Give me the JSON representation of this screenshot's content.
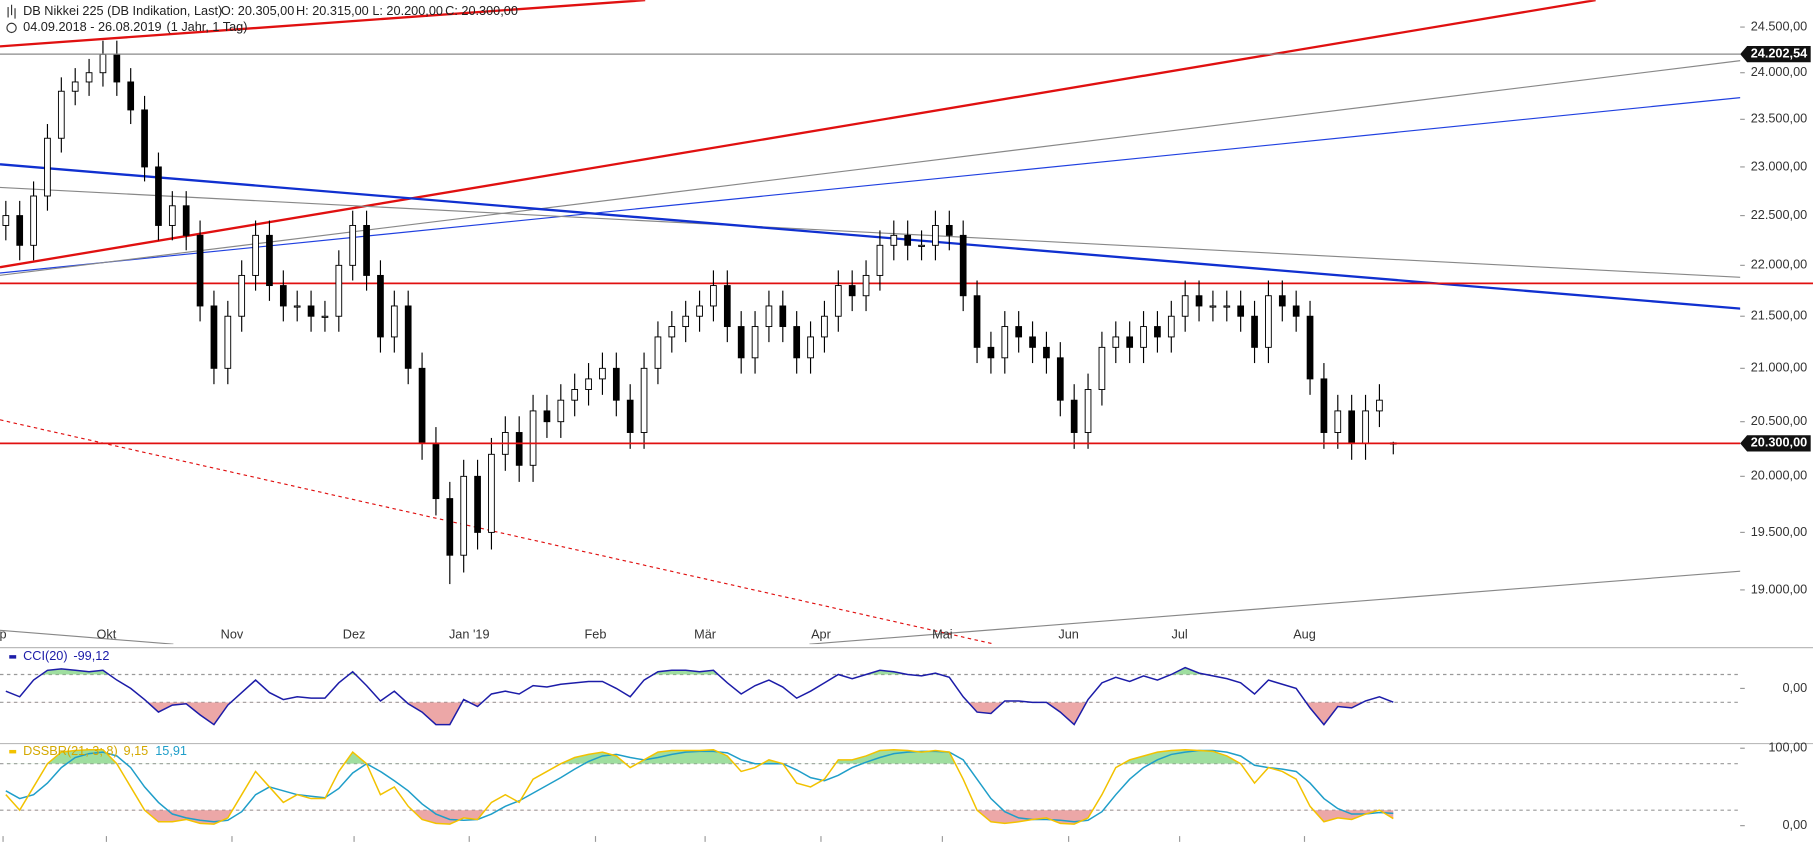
{
  "chart_data": {
    "type": "candlestick",
    "title": "DB Nikkei 225 (DB Indikation, Last)",
    "ohlc_summary": [
      "O: 20.305,00",
      "H: 20.315,00",
      "L: 20.200,00",
      "C: 20.300,00"
    ],
    "period": "04.09.2018 - 26.08.2019",
    "interval": "(1 Jahr, 1 Tag)",
    "open": [
      22400,
      22500,
      22200,
      22700,
      23300,
      23800,
      23900,
      24000,
      24200,
      23900,
      23600,
      23000,
      22400,
      22600,
      22300,
      21600,
      21000,
      21500,
      21900,
      22300,
      21800,
      21600,
      21600,
      21500,
      21500,
      22000,
      22400,
      21900,
      21300,
      21600,
      21000,
      20300,
      19800,
      19300,
      20000,
      19500,
      20200,
      20400,
      20100,
      20600,
      20500,
      20700,
      20800,
      20900,
      21000,
      20700,
      20400,
      21000,
      21300,
      21400,
      21500,
      21600,
      21800,
      21400,
      21100,
      21400,
      21600,
      21400,
      21100,
      21300,
      21500,
      21800,
      21700,
      21900,
      22200,
      22300,
      22200,
      22200,
      22400,
      22300,
      21700,
      21200,
      21100,
      21400,
      21300,
      21200,
      21100,
      20700,
      20400,
      20800,
      21200,
      21300,
      21200,
      21400,
      21300,
      21500,
      21700,
      21600,
      21600,
      21600,
      21500,
      21200,
      21700,
      21600,
      21500,
      20900,
      20400,
      20600,
      20300,
      20600,
      20305
    ],
    "high": [
      22650,
      22650,
      22850,
      23450,
      23950,
      24050,
      24150,
      24350,
      24350,
      24050,
      23750,
      23150,
      22750,
      22750,
      22450,
      21750,
      21650,
      22050,
      22450,
      22450,
      21950,
      21750,
      21750,
      21650,
      22150,
      22550,
      22550,
      22050,
      21750,
      21750,
      21150,
      20450,
      19950,
      20150,
      20150,
      20350,
      20550,
      20550,
      20750,
      20750,
      20850,
      20950,
      21050,
      21150,
      21150,
      20850,
      21150,
      21450,
      21550,
      21650,
      21750,
      21950,
      21950,
      21550,
      21550,
      21750,
      21750,
      21550,
      21450,
      21650,
      21950,
      21950,
      22050,
      22350,
      22450,
      22450,
      22350,
      22550,
      22550,
      22450,
      21850,
      21350,
      21550,
      21550,
      21450,
      21350,
      21250,
      20850,
      20950,
      21350,
      21450,
      21450,
      21550,
      21550,
      21650,
      21850,
      21850,
      21750,
      21750,
      21750,
      21650,
      21850,
      21850,
      21750,
      21650,
      21050,
      20750,
      20750,
      20750,
      20850,
      20315
    ],
    "low": [
      22250,
      22050,
      22050,
      22550,
      23150,
      23650,
      23750,
      23850,
      23750,
      23450,
      22850,
      22250,
      22250,
      22150,
      21450,
      20850,
      20850,
      21350,
      21750,
      21650,
      21450,
      21450,
      21350,
      21350,
      21350,
      21850,
      21750,
      21150,
      21150,
      20850,
      20150,
      19650,
      19050,
      19150,
      19350,
      19350,
      20050,
      19950,
      19950,
      20350,
      20350,
      20550,
      20650,
      20750,
      20550,
      20250,
      20250,
      20850,
      21150,
      21250,
      21350,
      21450,
      21250,
      20950,
      20950,
      21250,
      21250,
      20950,
      20950,
      21150,
      21350,
      21550,
      21550,
      21750,
      22050,
      22050,
      22050,
      22050,
      22150,
      21550,
      21050,
      20950,
      20950,
      21150,
      21050,
      20950,
      20550,
      20250,
      20250,
      20650,
      21050,
      21050,
      21050,
      21150,
      21150,
      21350,
      21450,
      21450,
      21450,
      21350,
      21050,
      21050,
      21450,
      21350,
      20750,
      20250,
      20250,
      20150,
      20150,
      20450,
      20200
    ],
    "close": [
      22500,
      22200,
      22700,
      23300,
      23800,
      23900,
      24000,
      24200,
      23900,
      23600,
      23000,
      22400,
      22600,
      22300,
      21600,
      21000,
      21500,
      21900,
      22300,
      21800,
      21600,
      21600,
      21500,
      21500,
      22000,
      22400,
      21900,
      21300,
      21600,
      21000,
      20300,
      19800,
      19300,
      20000,
      19500,
      20200,
      20400,
      20100,
      20600,
      20500,
      20700,
      20800,
      20900,
      21000,
      20700,
      20400,
      21000,
      21300,
      21400,
      21500,
      21600,
      21800,
      21400,
      21100,
      21400,
      21600,
      21400,
      21100,
      21300,
      21500,
      21800,
      21700,
      21900,
      22200,
      22300,
      22200,
      22200,
      22400,
      22300,
      21700,
      21200,
      21100,
      21400,
      21300,
      21200,
      21100,
      20700,
      20400,
      20800,
      21200,
      21300,
      21200,
      21400,
      21300,
      21500,
      21700,
      21600,
      21600,
      21600,
      21500,
      21200,
      21700,
      21600,
      21500,
      20900,
      20400,
      20600,
      20300,
      20600,
      20700,
      20300
    ],
    "up_color": "#ffffff",
    "down_color": "#000000",
    "log_scale": true,
    "ylim": [
      18540,
      24800
    ],
    "yticks": [
      {
        "value": 24500,
        "label": "24.500,00"
      },
      {
        "value": 24000,
        "label": "24.000,00"
      },
      {
        "value": 23500,
        "label": "23.500,00"
      },
      {
        "value": 23000,
        "label": "23.000,00"
      },
      {
        "value": 22500,
        "label": "22.500,00"
      },
      {
        "value": 22000,
        "label": "22.000,00"
      },
      {
        "value": 21500,
        "label": "21.500,00"
      },
      {
        "value": 21000,
        "label": "21.000,00"
      },
      {
        "value": 20500,
        "label": "20.500,00"
      },
      {
        "value": 20000,
        "label": "20.000,00"
      },
      {
        "value": 19500,
        "label": "19.500,00"
      },
      {
        "value": 19000,
        "label": "19.000,00"
      }
    ],
    "xlim": [
      -0.42,
      125
    ],
    "xticks": [
      {
        "value": -0.2,
        "label": "p"
      },
      {
        "value": 7.25,
        "label": "Okt"
      },
      {
        "value": 16.3,
        "label": "Nov"
      },
      {
        "value": 25.1,
        "label": "Dez"
      },
      {
        "value": 33.4,
        "label": "Jan '19"
      },
      {
        "value": 42.5,
        "label": "Feb"
      },
      {
        "value": 50.4,
        "label": "Mär"
      },
      {
        "value": 58.75,
        "label": "Apr"
      },
      {
        "value": 67.5,
        "label": "Mai"
      },
      {
        "value": 76.6,
        "label": "Jun"
      },
      {
        "value": 84.6,
        "label": "Jul"
      },
      {
        "value": 93.6,
        "label": "Aug"
      }
    ],
    "price_levels": [
      {
        "value": 24202.54,
        "label": "24.202,54",
        "color": "#8a8a8a"
      },
      {
        "value": 20300,
        "label": "20.300,00",
        "color": "#e01010"
      }
    ],
    "indicators": [
      {
        "ylim": [
          -388,
          268
        ],
        "yticks": [
          {
            "value": 0,
            "label": "0,00"
          }
        ],
        "levels": [
          100,
          -100
        ],
        "series": [
          {
            "name": "CCI(20)",
            "color": "#1c1ca8",
            "last": {
              "value": -99.12,
              "label": "-99,12"
            },
            "values": [
              -20,
              -60,
              60,
              130,
              140,
              130,
              120,
              130,
              60,
              0,
              -80,
              -170,
              -120,
              -110,
              -190,
              -260,
              -120,
              -30,
              60,
              -30,
              -80,
              -60,
              -70,
              -70,
              40,
              120,
              20,
              -90,
              -20,
              -110,
              -170,
              -260,
              -260,
              -80,
              -130,
              -40,
              -20,
              -40,
              20,
              10,
              30,
              40,
              50,
              50,
              0,
              -60,
              60,
              120,
              130,
              130,
              120,
              130,
              40,
              -40,
              20,
              60,
              10,
              -70,
              -20,
              40,
              100,
              70,
              100,
              130,
              120,
              100,
              90,
              110,
              80,
              -60,
              -170,
              -180,
              -90,
              -90,
              -100,
              -100,
              -170,
              -260,
              -80,
              40,
              80,
              50,
              90,
              60,
              100,
              150,
              110,
              90,
              70,
              40,
              -40,
              60,
              30,
              0,
              -140,
              -260,
              -130,
              -140,
              -90,
              -60,
              -99.12
            ]
          }
        ]
      },
      {
        "ylim": [
          -12,
          103
        ],
        "yticks": [
          {
            "value": 100,
            "label": "100,00"
          },
          {
            "value": 0,
            "label": "0,00"
          }
        ],
        "levels": [
          80,
          20
        ],
        "series": [
          {
            "name": "DSSBR(21; 3; 8)",
            "color": "#f2c200",
            "last": {
              "value": 9.15,
              "label": "9,15"
            },
            "values": [
              40,
              20,
              50,
              80,
              95,
              97,
              98,
              98,
              80,
              50,
              20,
              5,
              5,
              8,
              3,
              2,
              10,
              40,
              70,
              50,
              30,
              40,
              35,
              35,
              70,
              95,
              80,
              40,
              50,
              25,
              8,
              3,
              2,
              10,
              8,
              30,
              40,
              30,
              60,
              70,
              80,
              88,
              92,
              95,
              90,
              75,
              85,
              95,
              97,
              97,
              97,
              98,
              90,
              70,
              75,
              85,
              80,
              55,
              50,
              60,
              85,
              85,
              90,
              97,
              98,
              97,
              95,
              97,
              95,
              60,
              20,
              5,
              3,
              5,
              8,
              10,
              3,
              2,
              10,
              40,
              75,
              85,
              90,
              95,
              97,
              98,
              97,
              96,
              90,
              80,
              55,
              75,
              70,
              60,
              25,
              5,
              10,
              8,
              15,
              20,
              9.15
            ]
          },
          {
            "color": "#1f9ec9",
            "last": {
              "value": 15.91,
              "label": "15,91"
            },
            "values": [
              45,
              35,
              40,
              55,
              75,
              88,
              93,
              95,
              90,
              75,
              50,
              30,
              15,
              10,
              7,
              5,
              7,
              18,
              40,
              50,
              45,
              40,
              38,
              36,
              48,
              68,
              80,
              70,
              58,
              45,
              28,
              15,
              8,
              7,
              8,
              15,
              25,
              32,
              42,
              52,
              62,
              73,
              83,
              90,
              92,
              88,
              85,
              88,
              92,
              95,
              96,
              96,
              94,
              85,
              80,
              80,
              80,
              72,
              62,
              58,
              65,
              75,
              82,
              88,
              93,
              95,
              96,
              96,
              95,
              85,
              60,
              35,
              18,
              10,
              8,
              8,
              7,
              5,
              7,
              18,
              40,
              60,
              75,
              85,
              92,
              95,
              97,
              97,
              95,
              90,
              78,
              75,
              73,
              70,
              55,
              35,
              22,
              15,
              15,
              17,
              15.91
            ]
          }
        ]
      }
    ]
  }
}
